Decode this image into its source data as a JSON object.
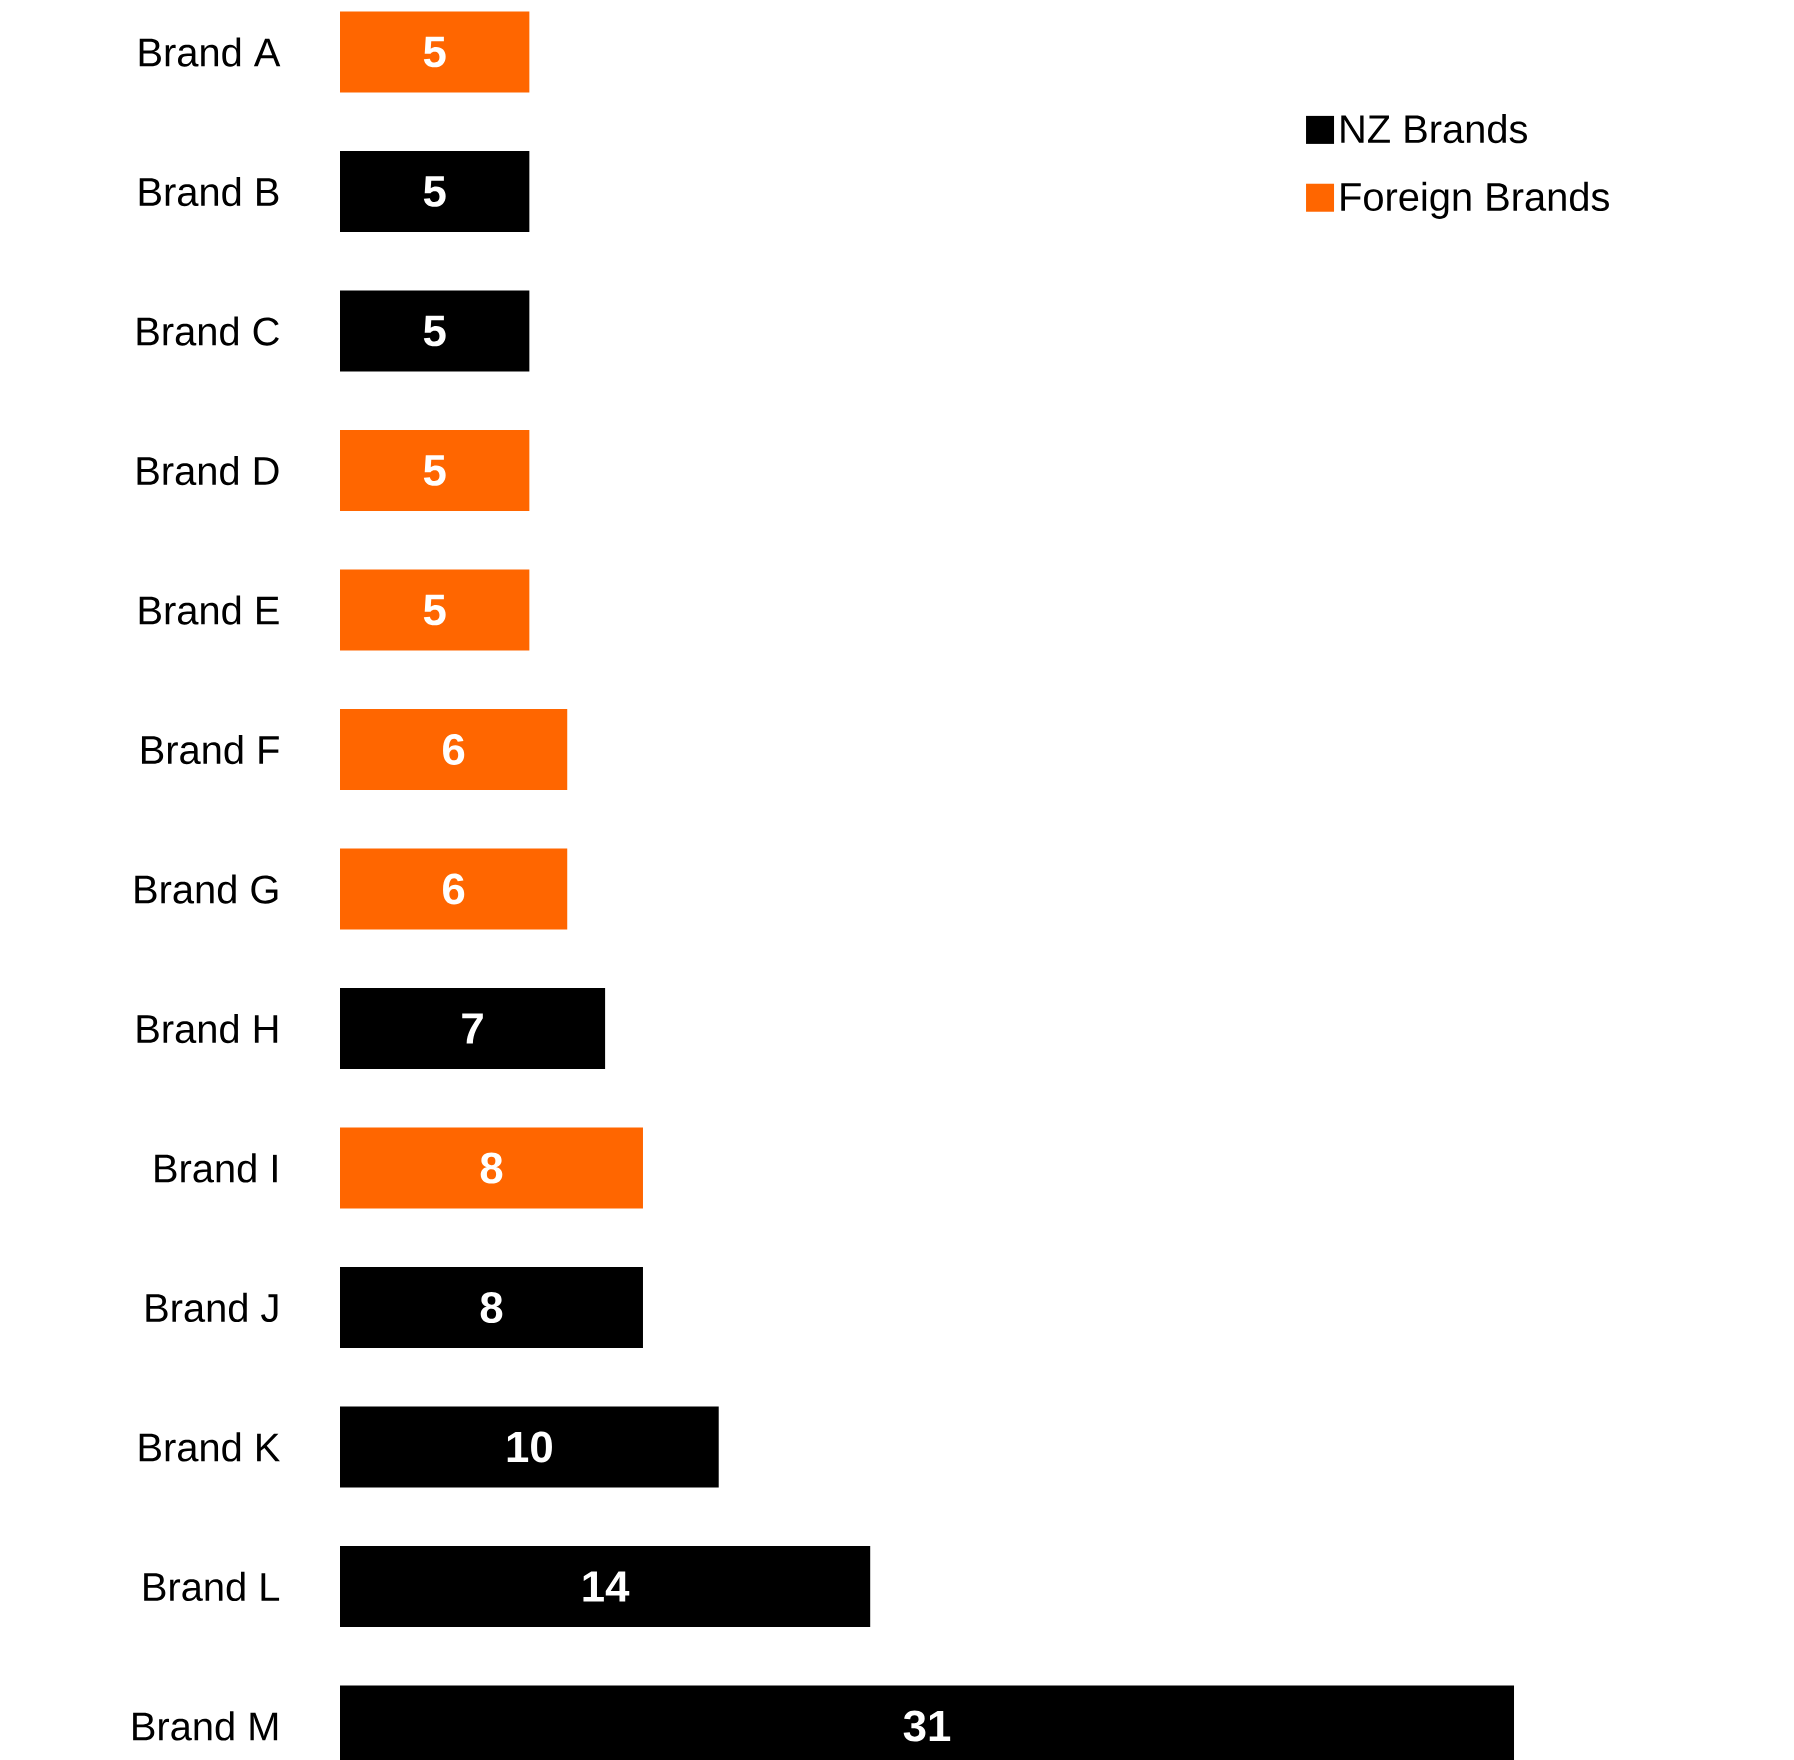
{
  "chart_data": {
    "type": "bar",
    "orientation": "horizontal",
    "categories": [
      "Brand A",
      "Brand B",
      "Brand C",
      "Brand D",
      "Brand E",
      "Brand F",
      "Brand G",
      "Brand H",
      "Brand I",
      "Brand J",
      "Brand K",
      "Brand L",
      "Brand M"
    ],
    "series": [
      {
        "name": "NZ Brands",
        "color": "#000000",
        "values": [
          null,
          5,
          5,
          null,
          null,
          null,
          null,
          7,
          null,
          8,
          10,
          14,
          31
        ]
      },
      {
        "name": "Foreign Brands",
        "color": "#ff6600",
        "values": [
          5,
          null,
          null,
          5,
          5,
          6,
          6,
          null,
          8,
          null,
          null,
          null,
          null
        ]
      }
    ],
    "data_labels": true,
    "legend": "top right"
  }
}
